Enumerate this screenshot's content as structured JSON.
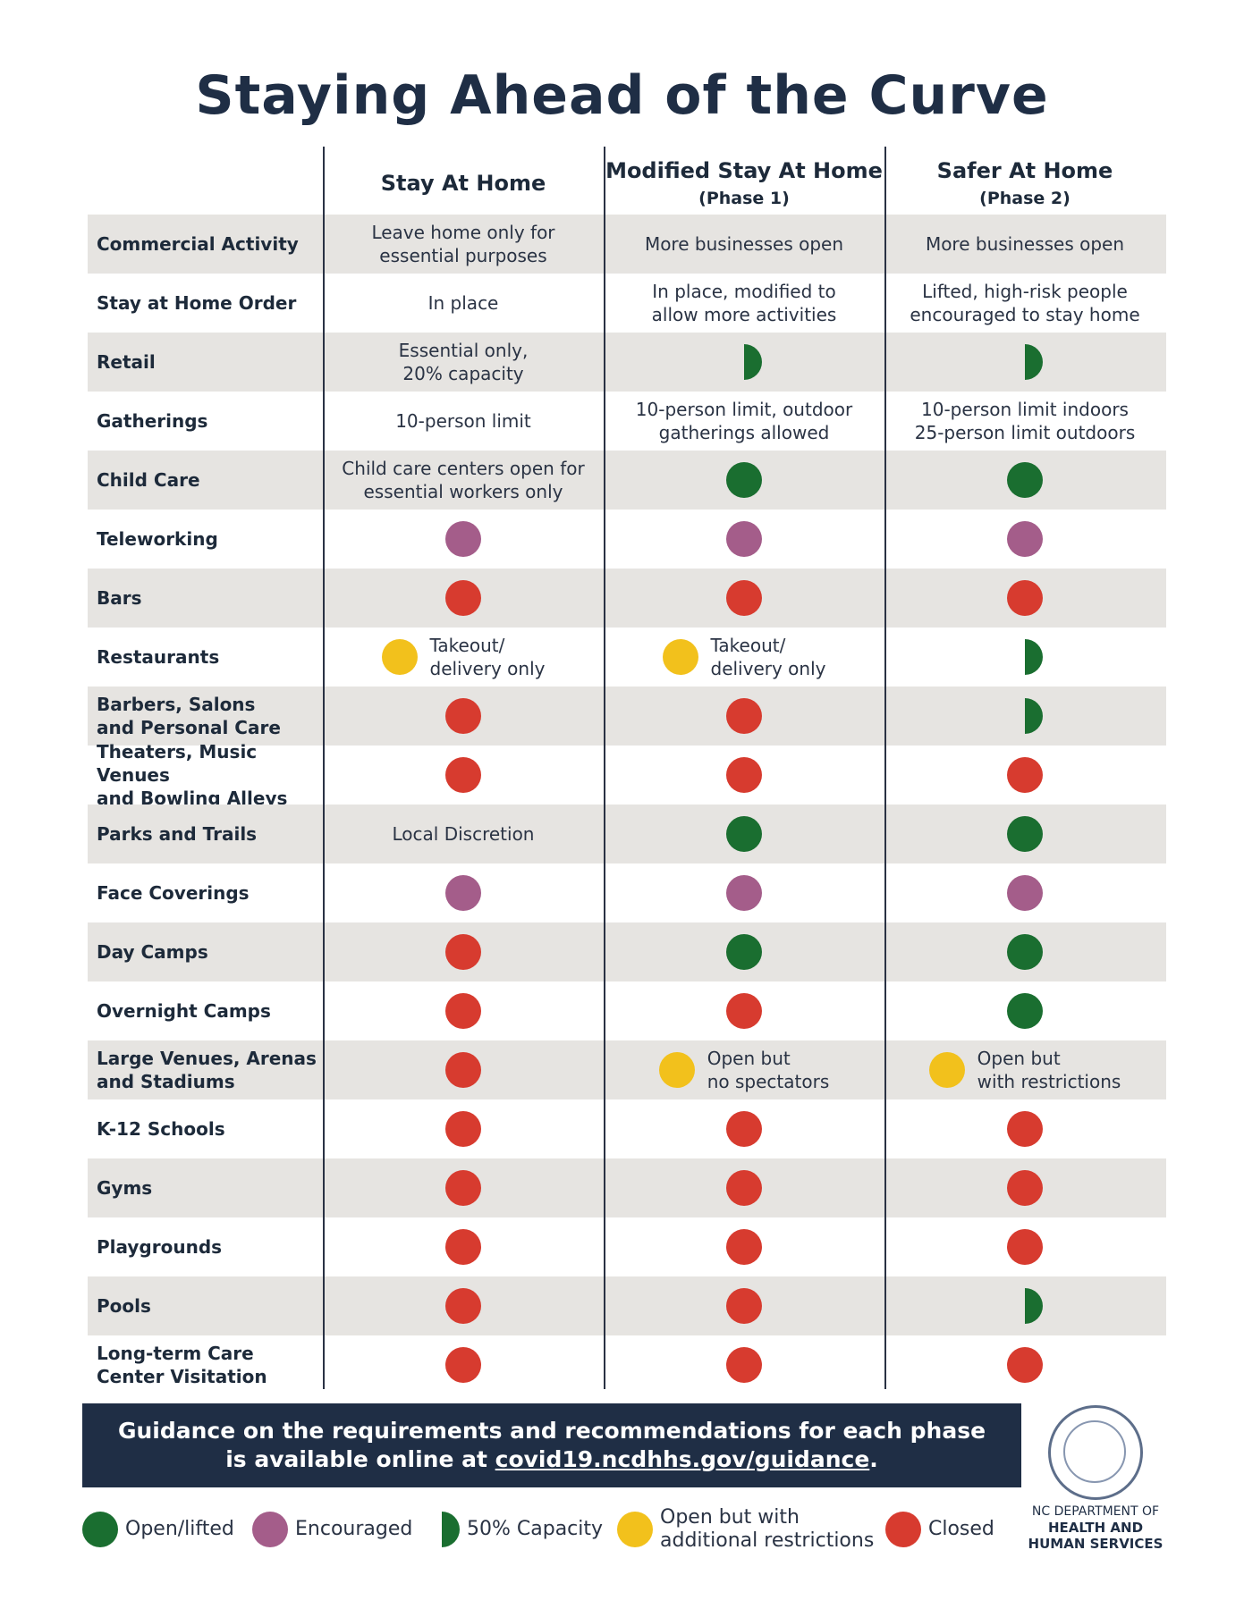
{
  "title": "Staying Ahead of the Curve",
  "headers": [
    {
      "main": "Stay At Home",
      "sub": ""
    },
    {
      "main": "Modified Stay At Home",
      "sub": "(Phase 1)"
    },
    {
      "main": "Safer At Home",
      "sub": "(Phase 2)"
    }
  ],
  "colors": {
    "open": "#1a6e30",
    "encouraged": "#a45d8a",
    "capacity": "#1a6e30",
    "restricted": "#f2c11c",
    "closed": "#d73b2f",
    "banner": "#1f2e45"
  },
  "rows": [
    {
      "label": "Commercial Activity",
      "cells": [
        {
          "type": "text",
          "text": "Leave home only for\nessential purposes"
        },
        {
          "type": "text",
          "text": "More businesses open"
        },
        {
          "type": "text",
          "text": "More businesses open"
        }
      ]
    },
    {
      "label": "Stay at Home Order",
      "cells": [
        {
          "type": "text",
          "text": "In place"
        },
        {
          "type": "text",
          "text": "In place, modified to\nallow more activities"
        },
        {
          "type": "text",
          "text": "Lifted, high-risk people\nencouraged to stay home"
        }
      ]
    },
    {
      "label": "Retail",
      "cells": [
        {
          "type": "text",
          "text": "Essential only,\n20% capacity"
        },
        {
          "type": "half"
        },
        {
          "type": "half"
        }
      ]
    },
    {
      "label": "Gatherings",
      "cells": [
        {
          "type": "text",
          "text": "10-person limit"
        },
        {
          "type": "text",
          "text": "10-person limit, outdoor\ngatherings allowed"
        },
        {
          "type": "text",
          "text": "10-person limit indoors\n25-person limit outdoors"
        }
      ]
    },
    {
      "label": "Child Care",
      "cells": [
        {
          "type": "text",
          "text": "Child care centers open for\nessential workers only"
        },
        {
          "type": "green"
        },
        {
          "type": "green"
        }
      ]
    },
    {
      "label": "Teleworking",
      "cells": [
        {
          "type": "purple"
        },
        {
          "type": "purple"
        },
        {
          "type": "purple"
        }
      ]
    },
    {
      "label": "Bars",
      "cells": [
        {
          "type": "red"
        },
        {
          "type": "red"
        },
        {
          "type": "red"
        }
      ]
    },
    {
      "label": "Restaurants",
      "cells": [
        {
          "type": "yellow",
          "text": "Takeout/\ndelivery only"
        },
        {
          "type": "yellow",
          "text": "Takeout/\ndelivery only"
        },
        {
          "type": "half"
        }
      ]
    },
    {
      "label": "Barbers, Salons\nand Personal Care",
      "cells": [
        {
          "type": "red"
        },
        {
          "type": "red"
        },
        {
          "type": "half"
        }
      ]
    },
    {
      "label": "Theaters, Music Venues\nand Bowling Alleys",
      "cells": [
        {
          "type": "red"
        },
        {
          "type": "red"
        },
        {
          "type": "red"
        }
      ]
    },
    {
      "label": "Parks and Trails",
      "cells": [
        {
          "type": "text",
          "text": "Local Discretion"
        },
        {
          "type": "green"
        },
        {
          "type": "green"
        }
      ]
    },
    {
      "label": "Face Coverings",
      "cells": [
        {
          "type": "purple"
        },
        {
          "type": "purple"
        },
        {
          "type": "purple"
        }
      ]
    },
    {
      "label": "Day Camps",
      "cells": [
        {
          "type": "red"
        },
        {
          "type": "green"
        },
        {
          "type": "green"
        }
      ]
    },
    {
      "label": "Overnight Camps",
      "cells": [
        {
          "type": "red"
        },
        {
          "type": "red"
        },
        {
          "type": "green"
        }
      ]
    },
    {
      "label": "Large Venues, Arenas\nand Stadiums",
      "cells": [
        {
          "type": "red"
        },
        {
          "type": "yellow",
          "text": "Open but\nno spectators"
        },
        {
          "type": "yellow",
          "text": "Open but\nwith restrictions"
        }
      ]
    },
    {
      "label": "K-12 Schools",
      "cells": [
        {
          "type": "red"
        },
        {
          "type": "red"
        },
        {
          "type": "red"
        }
      ]
    },
    {
      "label": "Gyms",
      "cells": [
        {
          "type": "red"
        },
        {
          "type": "red"
        },
        {
          "type": "red"
        }
      ]
    },
    {
      "label": "Playgrounds",
      "cells": [
        {
          "type": "red"
        },
        {
          "type": "red"
        },
        {
          "type": "red"
        }
      ]
    },
    {
      "label": "Pools",
      "cells": [
        {
          "type": "red"
        },
        {
          "type": "red"
        },
        {
          "type": "half"
        }
      ]
    },
    {
      "label": "Long-term Care\nCenter Visitation",
      "cells": [
        {
          "type": "red"
        },
        {
          "type": "red"
        },
        {
          "type": "red"
        }
      ]
    }
  ],
  "banner": {
    "line1": "Guidance on the requirements and recommendations for each phase",
    "line2_prefix": "is available online at ",
    "link": "covid19.ncdhhs.gov/guidance",
    "line2_suffix": "."
  },
  "legend": [
    {
      "type": "green",
      "label": "Open/lifted"
    },
    {
      "type": "purple",
      "label": "Encouraged"
    },
    {
      "type": "half",
      "label": "50% Capacity"
    },
    {
      "type": "yellow",
      "label": "Open but with\nadditional restrictions"
    },
    {
      "type": "red",
      "label": "Closed"
    }
  ],
  "department": {
    "line1": "NC DEPARTMENT OF",
    "line2": "HEALTH AND",
    "line3": "HUMAN SERVICES"
  }
}
